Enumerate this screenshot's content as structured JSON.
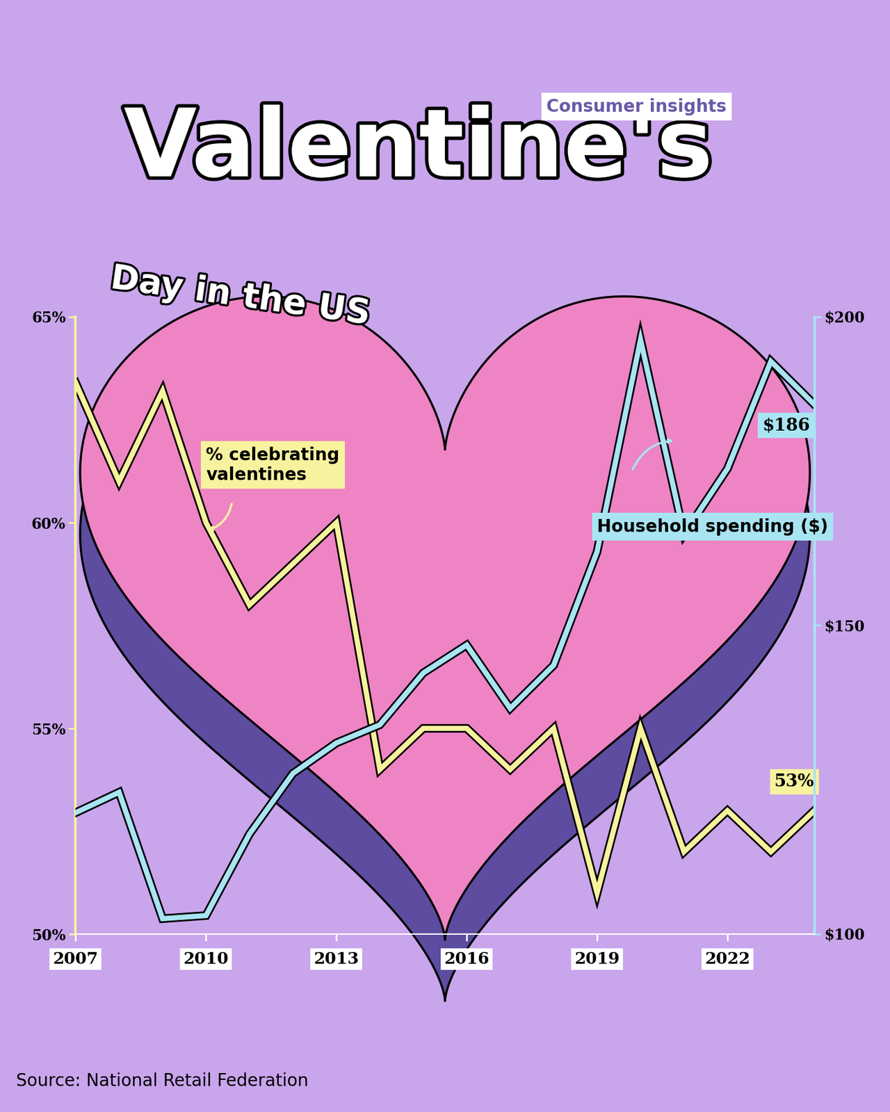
{
  "chart_data": {
    "type": "line",
    "title": "Valentine's",
    "subtitle": "Day in the US",
    "tag": "Consumer insights",
    "source": "Source: National Retail Federation",
    "x": [
      2007,
      2008,
      2009,
      2010,
      2011,
      2012,
      2013,
      2014,
      2015,
      2016,
      2017,
      2018,
      2019,
      2020,
      2021,
      2022,
      2023,
      2024
    ],
    "xlim": [
      2007,
      2024
    ],
    "xticks": [
      2007,
      2010,
      2013,
      2016,
      2019,
      2022
    ],
    "ylim": [
      50,
      65
    ],
    "yticks": [
      {
        "value": 50,
        "label": "50%"
      },
      {
        "value": 55,
        "label": "55%"
      },
      {
        "value": 60,
        "label": "60%"
      },
      {
        "value": 65,
        "label": "65%"
      }
    ],
    "y2lim": [
      100,
      200
    ],
    "y2ticks": [
      {
        "value": 100,
        "label": "$100"
      },
      {
        "value": 150,
        "label": "$150"
      },
      {
        "value": 200,
        "label": "$200"
      }
    ],
    "series": [
      {
        "name": "% celebrating\nvalentines",
        "color": "#f7f29e",
        "axis": "y",
        "values": [
          63.4,
          61.0,
          63.2,
          60.0,
          58.0,
          59.0,
          60.0,
          54.0,
          55.0,
          55.0,
          54.0,
          55.0,
          51.0,
          55.0,
          52.0,
          53.0,
          52.0,
          53.0
        ],
        "end_label": "53%"
      },
      {
        "name": "Household spending ($)",
        "color": "#a9e4f2",
        "axis": "y2",
        "values": [
          119.67,
          122.98,
          102.5,
          103.0,
          116.21,
          126.03,
          130.97,
          133.91,
          142.31,
          146.84,
          136.57,
          143.56,
          161.96,
          196.31,
          164.76,
          175.41,
          192.8,
          185.81
        ],
        "end_label": "$186"
      }
    ]
  }
}
